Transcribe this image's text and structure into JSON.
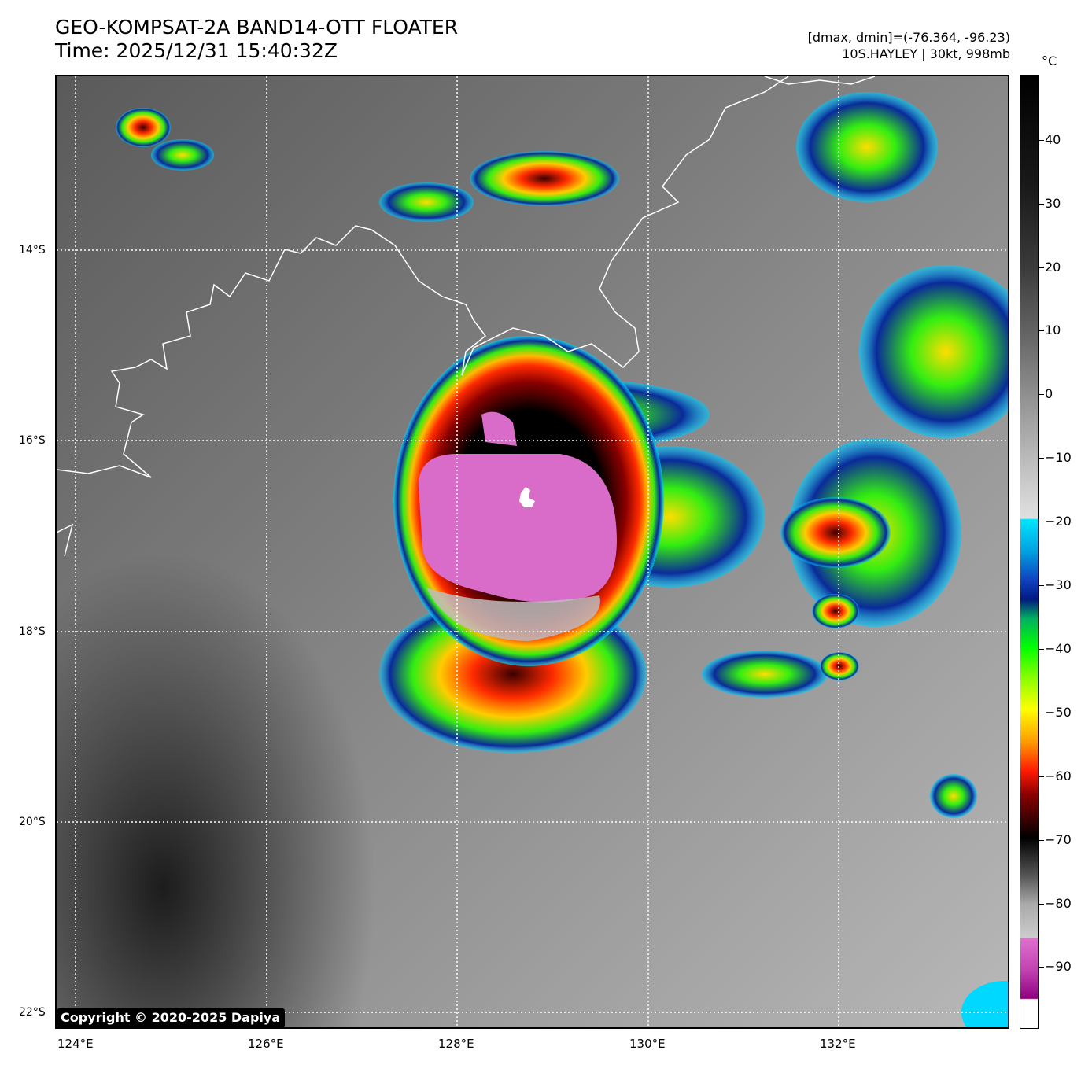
{
  "header": {
    "title_line1": "GEO-KOMPSAT-2A BAND14-OTT FLOATER",
    "title_line2": "Time: 2025/12/31 15:40:32Z",
    "meta_line1": "[dmax, dmin]=(-76.364, -96.23)",
    "meta_line2": "10S.HAYLEY | 30kt, 998mb"
  },
  "axes": {
    "lat_labels": [
      "14°S",
      "16°S",
      "18°S",
      "20°S",
      "22°S"
    ],
    "lon_labels": [
      "124°E",
      "126°E",
      "128°E",
      "130°E",
      "132°E"
    ]
  },
  "colorbar": {
    "unit": "°C",
    "ticks": [
      "40",
      "30",
      "20",
      "10",
      "0",
      "−10",
      "−20",
      "−30",
      "−40",
      "−50",
      "−60",
      "−70",
      "−80",
      "−90"
    ]
  },
  "copyright": "Copyright © 2020-2025 Dapiya",
  "colors": {
    "cdo_top": "#d86cc8",
    "eye_ring": "#000000",
    "gradient_warm": "#ff2a00",
    "convection_green": "#33ee11",
    "coastline": "#ffffff"
  }
}
